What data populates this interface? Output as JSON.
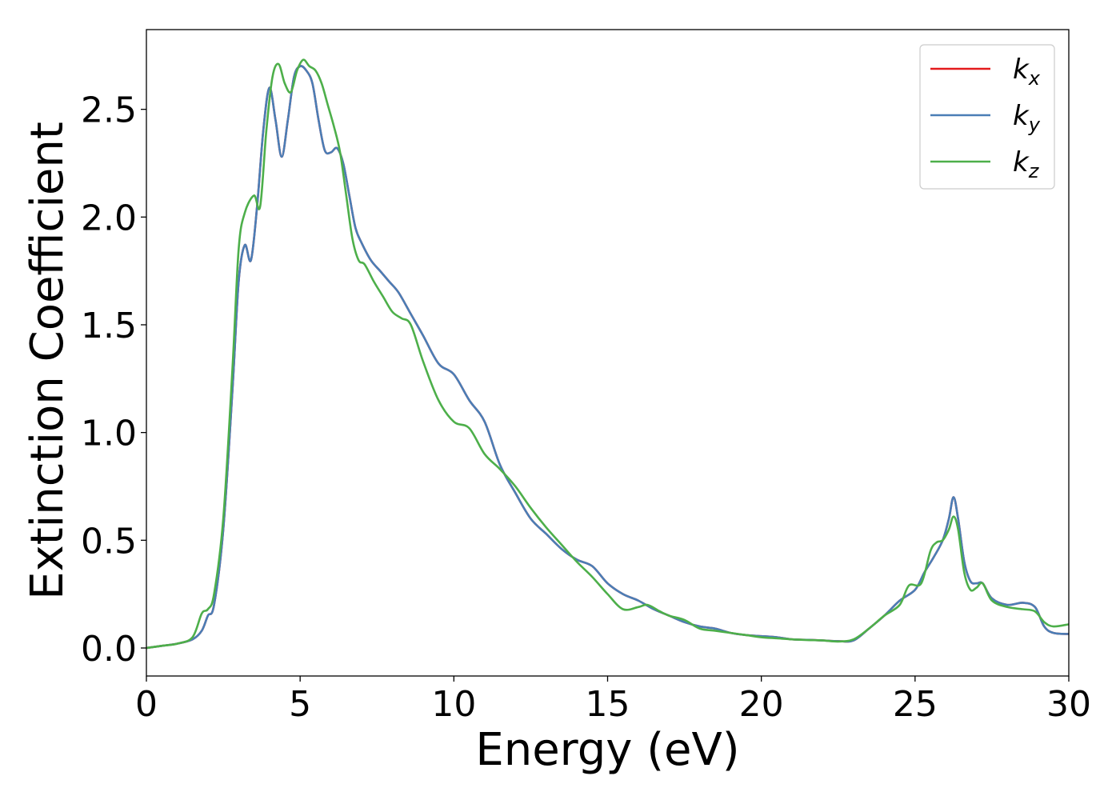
{
  "chart_data": {
    "type": "line",
    "title": "",
    "xlabel": "Energy (eV)",
    "ylabel": "Extinction Coefficient",
    "xlim": [
      0,
      30
    ],
    "ylim": [
      -0.13,
      2.87
    ],
    "xticks": [
      0,
      5,
      10,
      15,
      20,
      25,
      30
    ],
    "yticks": [
      0.0,
      0.5,
      1.0,
      1.5,
      2.0,
      2.5
    ],
    "xtick_labels": [
      "0",
      "5",
      "10",
      "15",
      "20",
      "25",
      "30"
    ],
    "ytick_labels": [
      "0.0",
      "0.5",
      "1.0",
      "1.5",
      "2.0",
      "2.5"
    ],
    "grid": false,
    "legend_position": "top-right",
    "series": [
      {
        "name": "k_x",
        "label_main": "k",
        "label_sub": "x",
        "color": "#e41a1c",
        "x": [
          0,
          0.5,
          1.0,
          1.5,
          1.8,
          2.0,
          2.2,
          2.5,
          2.8,
          3.0,
          3.2,
          3.4,
          3.6,
          3.8,
          4.0,
          4.2,
          4.4,
          4.6,
          4.8,
          5.0,
          5.2,
          5.4,
          5.6,
          5.8,
          6.0,
          6.2,
          6.4,
          6.6,
          6.8,
          7.0,
          7.3,
          7.6,
          7.9,
          8.2,
          8.6,
          9.0,
          9.5,
          10.0,
          10.5,
          11.0,
          11.5,
          12.0,
          12.5,
          13.0,
          13.5,
          14.0,
          14.5,
          15.0,
          15.5,
          16.0,
          16.5,
          17.0,
          17.5,
          18.0,
          18.5,
          19.0,
          19.5,
          20.0,
          20.5,
          21.0,
          21.5,
          22.0,
          22.5,
          23.0,
          23.5,
          24.0,
          24.5,
          25.0,
          25.3,
          25.6,
          25.9,
          26.1,
          26.25,
          26.4,
          26.6,
          26.8,
          27.0,
          27.2,
          27.5,
          28.0,
          28.5,
          28.9,
          29.2,
          29.5,
          30.0
        ],
        "y": [
          0.0,
          0.01,
          0.02,
          0.04,
          0.08,
          0.15,
          0.2,
          0.55,
          1.2,
          1.7,
          1.87,
          1.8,
          2.05,
          2.4,
          2.6,
          2.45,
          2.28,
          2.45,
          2.65,
          2.7,
          2.68,
          2.62,
          2.45,
          2.31,
          2.3,
          2.32,
          2.25,
          2.1,
          1.95,
          1.88,
          1.8,
          1.75,
          1.7,
          1.65,
          1.55,
          1.45,
          1.32,
          1.27,
          1.15,
          1.05,
          0.85,
          0.72,
          0.6,
          0.53,
          0.46,
          0.41,
          0.38,
          0.3,
          0.25,
          0.22,
          0.18,
          0.15,
          0.12,
          0.1,
          0.09,
          0.07,
          0.06,
          0.055,
          0.05,
          0.04,
          0.038,
          0.035,
          0.032,
          0.035,
          0.09,
          0.15,
          0.22,
          0.27,
          0.35,
          0.42,
          0.5,
          0.6,
          0.7,
          0.6,
          0.4,
          0.31,
          0.3,
          0.3,
          0.23,
          0.2,
          0.21,
          0.19,
          0.1,
          0.07,
          0.065
        ]
      },
      {
        "name": "k_y",
        "label_main": "k",
        "label_sub": "y",
        "color": "#4a7eb6",
        "x": [
          0,
          0.5,
          1.0,
          1.5,
          1.8,
          2.0,
          2.2,
          2.5,
          2.8,
          3.0,
          3.2,
          3.4,
          3.6,
          3.8,
          4.0,
          4.2,
          4.4,
          4.6,
          4.8,
          5.0,
          5.2,
          5.4,
          5.6,
          5.8,
          6.0,
          6.2,
          6.4,
          6.6,
          6.8,
          7.0,
          7.3,
          7.6,
          7.9,
          8.2,
          8.6,
          9.0,
          9.5,
          10.0,
          10.5,
          11.0,
          11.5,
          12.0,
          12.5,
          13.0,
          13.5,
          14.0,
          14.5,
          15.0,
          15.5,
          16.0,
          16.5,
          17.0,
          17.5,
          18.0,
          18.5,
          19.0,
          19.5,
          20.0,
          20.5,
          21.0,
          21.5,
          22.0,
          22.5,
          23.0,
          23.5,
          24.0,
          24.5,
          25.0,
          25.3,
          25.6,
          25.9,
          26.1,
          26.25,
          26.4,
          26.6,
          26.8,
          27.0,
          27.2,
          27.5,
          28.0,
          28.5,
          28.9,
          29.2,
          29.5,
          30.0
        ],
        "y": [
          0.0,
          0.01,
          0.02,
          0.04,
          0.08,
          0.15,
          0.2,
          0.55,
          1.2,
          1.7,
          1.87,
          1.8,
          2.05,
          2.4,
          2.6,
          2.45,
          2.28,
          2.45,
          2.65,
          2.7,
          2.68,
          2.62,
          2.45,
          2.31,
          2.3,
          2.32,
          2.25,
          2.1,
          1.95,
          1.88,
          1.8,
          1.75,
          1.7,
          1.65,
          1.55,
          1.45,
          1.32,
          1.27,
          1.15,
          1.05,
          0.85,
          0.72,
          0.6,
          0.53,
          0.46,
          0.41,
          0.38,
          0.3,
          0.25,
          0.22,
          0.18,
          0.15,
          0.12,
          0.1,
          0.09,
          0.07,
          0.06,
          0.055,
          0.05,
          0.04,
          0.038,
          0.035,
          0.032,
          0.035,
          0.09,
          0.15,
          0.22,
          0.27,
          0.35,
          0.42,
          0.5,
          0.6,
          0.7,
          0.6,
          0.4,
          0.31,
          0.3,
          0.3,
          0.23,
          0.2,
          0.21,
          0.19,
          0.1,
          0.07,
          0.065
        ]
      },
      {
        "name": "k_z",
        "label_main": "k",
        "label_sub": "z",
        "color": "#4daf4a",
        "x": [
          0,
          0.5,
          1.0,
          1.5,
          1.8,
          2.0,
          2.2,
          2.5,
          2.8,
          3.0,
          3.2,
          3.5,
          3.7,
          3.9,
          4.1,
          4.3,
          4.5,
          4.7,
          4.9,
          5.1,
          5.3,
          5.5,
          5.7,
          5.9,
          6.1,
          6.3,
          6.5,
          6.7,
          6.9,
          7.1,
          7.4,
          7.7,
          8.0,
          8.3,
          8.6,
          9.0,
          9.5,
          10.0,
          10.5,
          11.0,
          11.5,
          12.0,
          12.5,
          13.0,
          13.5,
          14.0,
          14.5,
          15.0,
          15.5,
          16.0,
          16.3,
          16.7,
          17.0,
          17.5,
          18.0,
          18.5,
          19.0,
          19.5,
          20.0,
          20.5,
          21.0,
          21.5,
          22.0,
          22.5,
          23.0,
          23.5,
          24.0,
          24.5,
          24.8,
          25.2,
          25.5,
          25.7,
          25.9,
          26.1,
          26.25,
          26.4,
          26.6,
          26.8,
          27.0,
          27.2,
          27.5,
          28.0,
          28.5,
          28.9,
          29.2,
          29.5,
          30.0
        ],
        "y": [
          0.0,
          0.01,
          0.02,
          0.05,
          0.16,
          0.18,
          0.25,
          0.6,
          1.3,
          1.85,
          2.02,
          2.1,
          2.05,
          2.4,
          2.65,
          2.71,
          2.62,
          2.58,
          2.68,
          2.73,
          2.7,
          2.68,
          2.62,
          2.52,
          2.42,
          2.3,
          2.1,
          1.9,
          1.8,
          1.78,
          1.7,
          1.63,
          1.56,
          1.53,
          1.5,
          1.33,
          1.15,
          1.05,
          1.02,
          0.9,
          0.83,
          0.75,
          0.65,
          0.56,
          0.48,
          0.4,
          0.33,
          0.25,
          0.18,
          0.19,
          0.2,
          0.17,
          0.15,
          0.13,
          0.09,
          0.08,
          0.07,
          0.06,
          0.05,
          0.045,
          0.04,
          0.037,
          0.035,
          0.03,
          0.04,
          0.09,
          0.15,
          0.2,
          0.29,
          0.3,
          0.45,
          0.49,
          0.5,
          0.55,
          0.61,
          0.55,
          0.35,
          0.27,
          0.28,
          0.3,
          0.22,
          0.19,
          0.18,
          0.17,
          0.12,
          0.1,
          0.11
        ]
      }
    ]
  }
}
